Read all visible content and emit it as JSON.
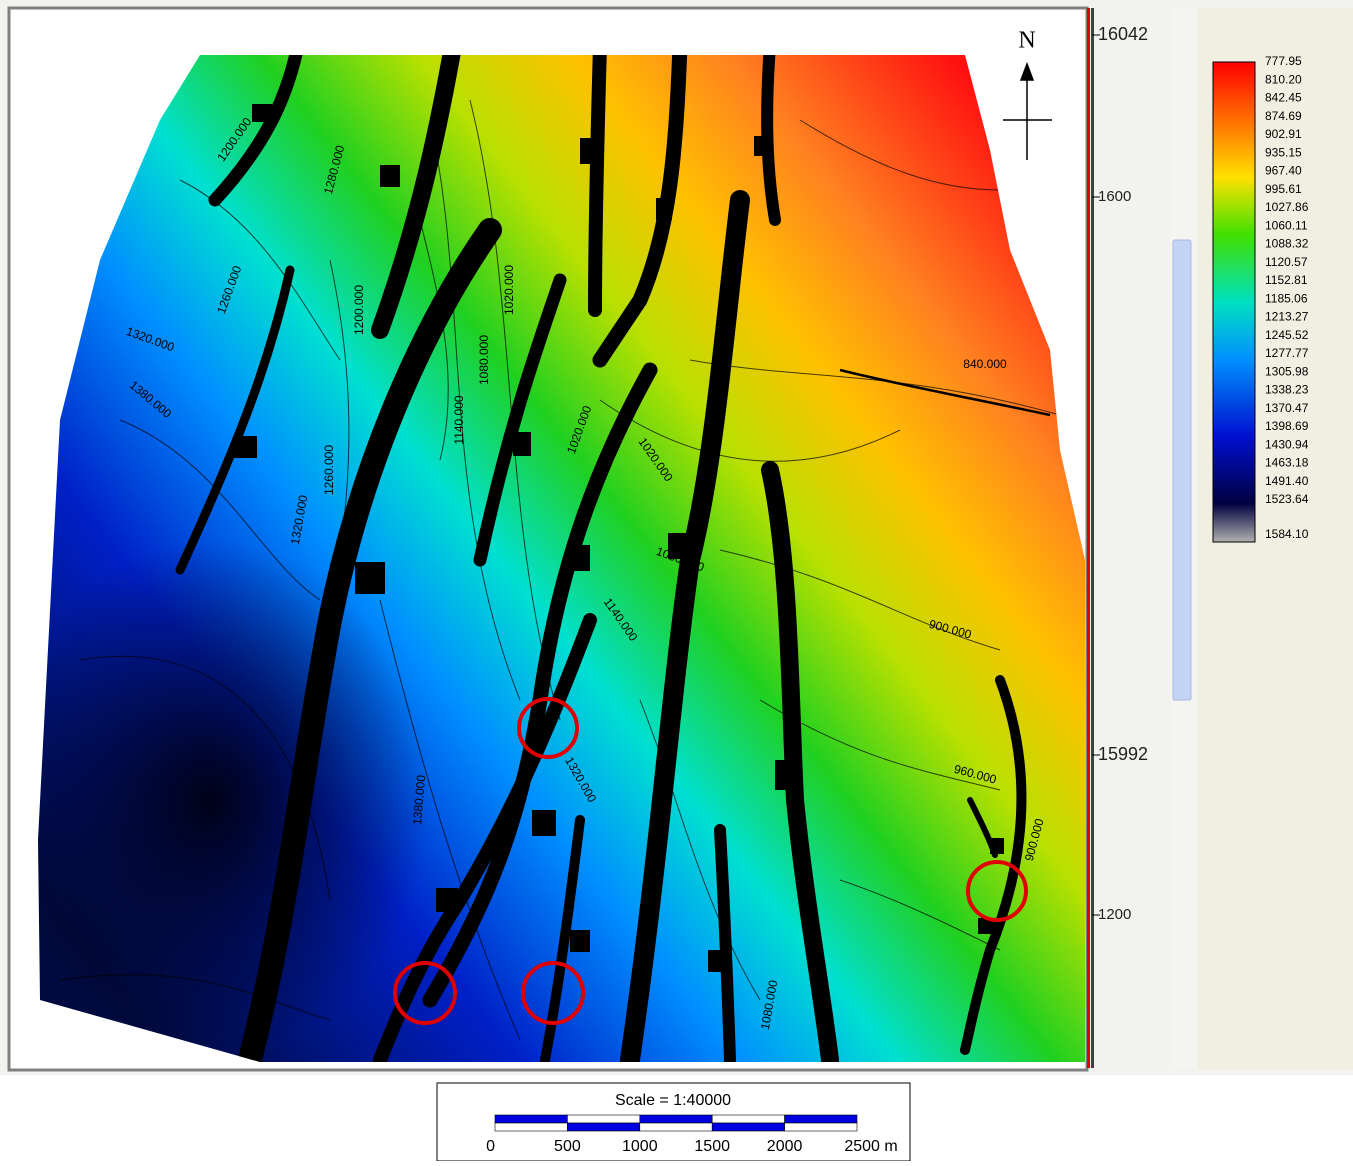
{
  "map": {
    "north_label": "N",
    "right_axis_labels": [
      "16042",
      "1600",
      "15992",
      "1200"
    ],
    "contour_labels": [
      "1200.000",
      "1280.000",
      "1260.000",
      "1320.000",
      "1380.000",
      "1200.000",
      "1260.000",
      "1320.000",
      "1020.000",
      "1080.000",
      "1140.000",
      "1020.000",
      "1020.000",
      "1080.000",
      "1140.000",
      "840.000",
      "900.000",
      "960.000",
      "900.000",
      "1320.000",
      "1380.000",
      "1080.000"
    ]
  },
  "legend": {
    "values": [
      "777.95",
      "810.20",
      "842.45",
      "874.69",
      "902.91",
      "935.15",
      "967.40",
      "995.61",
      "1027.86",
      "1060.11",
      "1088.32",
      "1120.57",
      "1152.81",
      "1185.06",
      "1213.27",
      "1245.52",
      "1277.77",
      "1305.98",
      "1338.23",
      "1370.47",
      "1398.69",
      "1430.94",
      "1463.18",
      "1491.40",
      "1523.64",
      "1584.10"
    ]
  },
  "scale_bar": {
    "title": "Scale = 1:40000",
    "labels": [
      "0",
      "500",
      "1000",
      "1500",
      "2000",
      "2500 m"
    ]
  }
}
